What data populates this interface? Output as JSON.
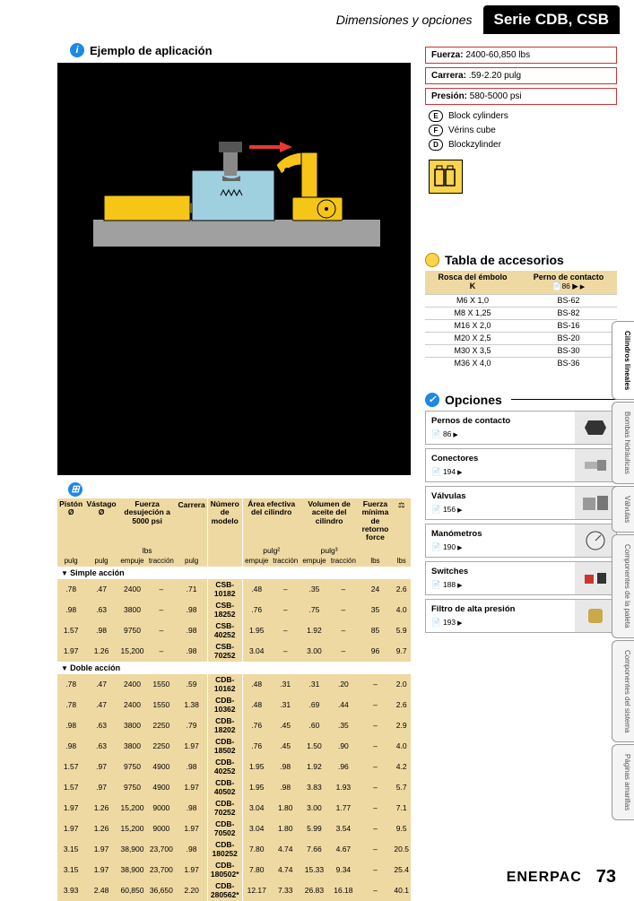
{
  "header": {
    "subhead": "Dimensiones y opciones",
    "title": "Serie CDB, CSB"
  },
  "ejemplo": {
    "title": "Ejemplo de aplicación"
  },
  "diagram": {
    "colors": {
      "black": "#000000",
      "yellow": "#f5c518",
      "lightblue": "#9fd0e0",
      "gray": "#999999",
      "red": "#e53935",
      "white": "#ffffff"
    }
  },
  "specs": [
    {
      "label": "Fuerza:",
      "value": "2400-60,850 lbs"
    },
    {
      "label": "Carrera:",
      "value": ".59-2.20 pulg"
    },
    {
      "label": "Presión:",
      "value": "580-5000 psi"
    }
  ],
  "legend": [
    {
      "key": "E",
      "text": "Block cylinders"
    },
    {
      "key": "F",
      "text": "Vérins cube"
    },
    {
      "key": "D",
      "text": "Blockzylinder"
    }
  ],
  "accesorios": {
    "title": "Tabla de accesorios",
    "head": {
      "col1a": "Rosca del émbolo",
      "col1b": "K",
      "col2a": "Perno de contacto",
      "col2b": "📄86 ▶"
    },
    "rows": [
      [
        "M6 X 1,0",
        "BS-62"
      ],
      [
        "M8 X 1,25",
        "BS-82"
      ],
      [
        "M16 X 2,0",
        "BS-16"
      ],
      [
        "M20 X 2,5",
        "BS-20"
      ],
      [
        "M30 X 3,5",
        "BS-30"
      ],
      [
        "M36 X 4,0",
        "BS-36"
      ]
    ]
  },
  "opciones": {
    "title": "Opciones",
    "items": [
      {
        "name": "Pernos de contacto",
        "page": "86"
      },
      {
        "name": "Conectores",
        "page": "194"
      },
      {
        "name": "Válvulas",
        "page": "156"
      },
      {
        "name": "Manómetros",
        "page": "190"
      },
      {
        "name": "Switches",
        "page": "188"
      },
      {
        "name": "Filtro de alta presión",
        "page": "193"
      }
    ]
  },
  "sidetabs": [
    "Cilindros lineales",
    "Bombas hidráulicas",
    "Válvulas",
    "Componentes de la paleta",
    "Componentes del sistema",
    "Páginas amarillas"
  ],
  "footer": {
    "brand": "ENERPAC",
    "page": "73"
  },
  "table": {
    "head": {
      "c1": "Pistón Ø",
      "c2": "Vástago Ø",
      "c3": "Fuerza desujeción a 5000 psi",
      "c4": "Carrera",
      "c5": "Número de modelo",
      "c6": "Área efectiva del cilindro",
      "c7": "Volumen de aceite del cilindro",
      "c8": "Fuerza mínima de retorno force",
      "u_lbs": "lbs",
      "u_p": "pulg",
      "u_p2": "pulg²",
      "u_p3": "pulg³",
      "sub_e": "empuje",
      "sub_t": "tracción"
    },
    "sections": [
      {
        "title": "Simple acción",
        "rows": [
          [
            ".78",
            ".47",
            "2400",
            "–",
            ".71",
            "CSB-10182",
            ".48",
            "–",
            ".35",
            "–",
            "24",
            "2.6"
          ],
          [
            ".98",
            ".63",
            "3800",
            "–",
            ".98",
            "CSB-18252",
            ".76",
            "–",
            ".75",
            "–",
            "35",
            "4.0"
          ],
          [
            "1.57",
            ".98",
            "9750",
            "–",
            ".98",
            "CSB-40252",
            "1.95",
            "–",
            "1.92",
            "–",
            "85",
            "5.9"
          ],
          [
            "1.97",
            "1.26",
            "15,200",
            "–",
            ".98",
            "CSB-70252",
            "3.04",
            "–",
            "3.00",
            "–",
            "96",
            "9.7"
          ]
        ]
      },
      {
        "title": "Doble acción",
        "rows": [
          [
            ".78",
            ".47",
            "2400",
            "1550",
            ".59",
            "CDB-10162",
            ".48",
            ".31",
            ".31",
            ".20",
            "–",
            "2.0"
          ],
          [
            ".78",
            ".47",
            "2400",
            "1550",
            "1.38",
            "CDB-10362",
            ".48",
            ".31",
            ".69",
            ".44",
            "–",
            "2.6"
          ],
          [
            ".98",
            ".63",
            "3800",
            "2250",
            ".79",
            "CDB-18202",
            ".76",
            ".45",
            ".60",
            ".35",
            "–",
            "2.9"
          ],
          [
            ".98",
            ".63",
            "3800",
            "2250",
            "1.97",
            "CDB-18502",
            ".76",
            ".45",
            "1.50",
            ".90",
            "–",
            "4.0"
          ],
          [
            "1.57",
            ".97",
            "9750",
            "4900",
            ".98",
            "CDB-40252",
            "1.95",
            ".98",
            "1.92",
            ".96",
            "–",
            "4.2"
          ],
          [
            "1.57",
            ".97",
            "9750",
            "4900",
            "1.97",
            "CDB-40502",
            "1.95",
            ".98",
            "3.83",
            "1.93",
            "–",
            "5.7"
          ],
          [
            "1.97",
            "1.26",
            "15,200",
            "9000",
            ".98",
            "CDB-70252",
            "3.04",
            "1.80",
            "3.00",
            "1.77",
            "–",
            "7.1"
          ],
          [
            "1.97",
            "1.26",
            "15,200",
            "9000",
            "1.97",
            "CDB-70502",
            "3.04",
            "1.80",
            "5.99",
            "3.54",
            "–",
            "9.5"
          ],
          [
            "3.15",
            "1.97",
            "38,900",
            "23,700",
            ".98",
            "CDB-180252",
            "7.80",
            "4.74",
            "7.66",
            "4.67",
            "–",
            "20.5"
          ],
          [
            "3.15",
            "1.97",
            "38,900",
            "23,700",
            "1.97",
            "CDB-180502*",
            "7.80",
            "4.74",
            "15.33",
            "9.34",
            "–",
            "25.4"
          ],
          [
            "3.93",
            "2.48",
            "60,850",
            "36,650",
            "2.20",
            "CDB-280562*",
            "12.17",
            "7.33",
            "26.83",
            "16.18",
            "–",
            "40.1"
          ]
        ]
      }
    ]
  }
}
